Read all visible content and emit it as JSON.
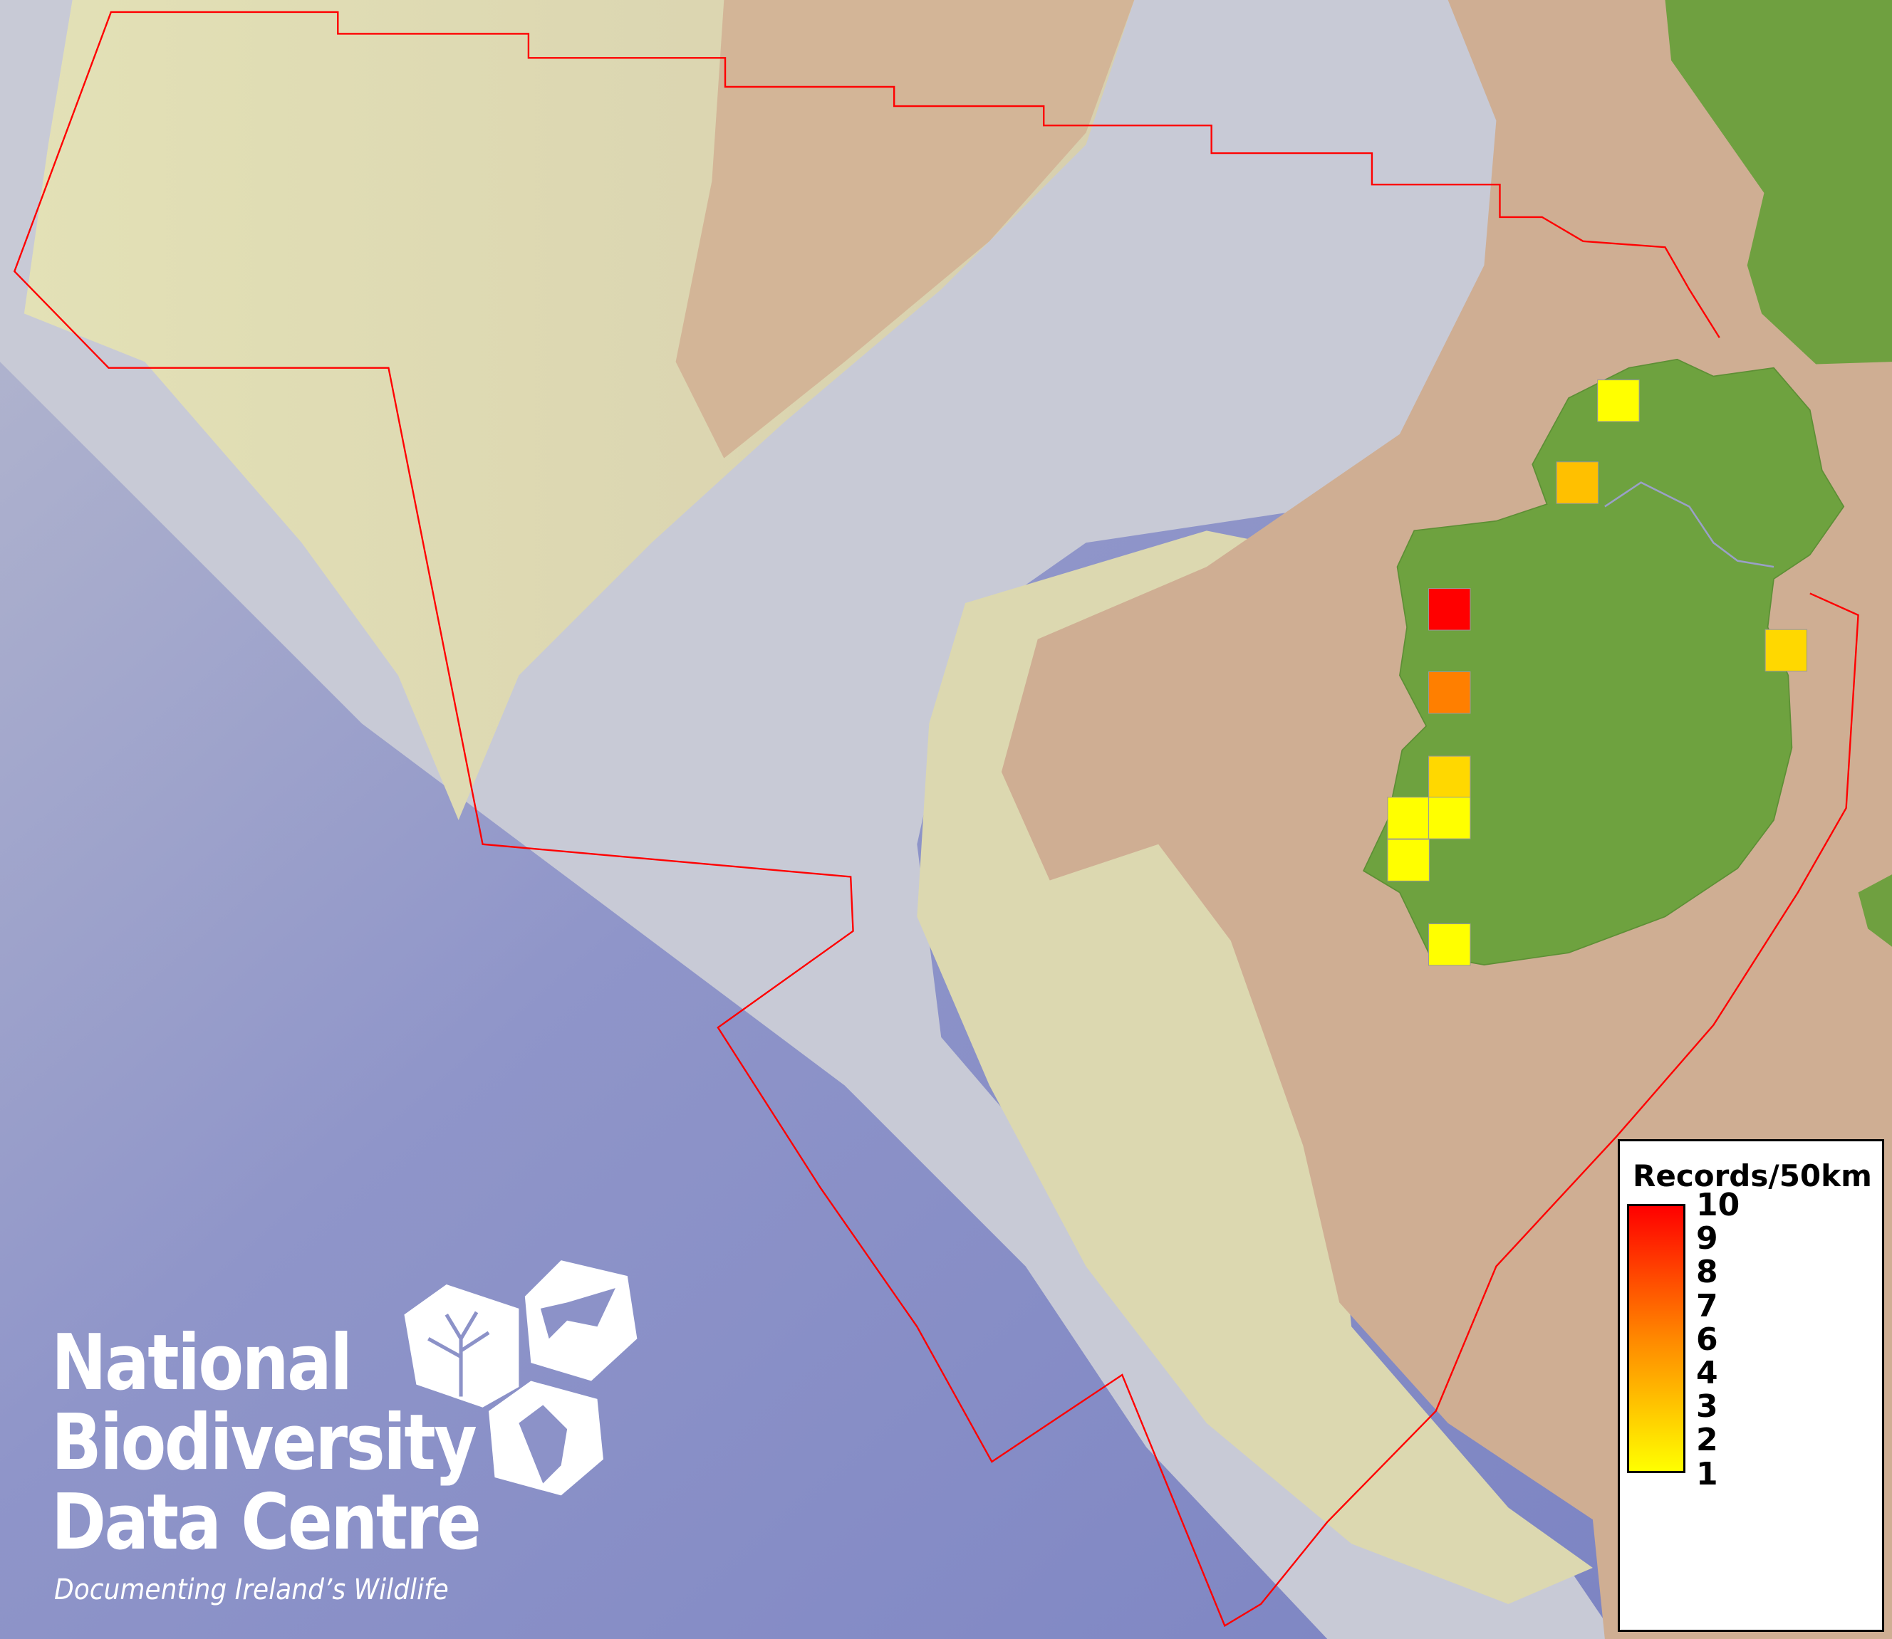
{
  "map": {
    "colors": {
      "deep_sea": "#7f86c4",
      "slope": "#c9cbd6",
      "shelf_yellow": "#dedbb0",
      "shelf_tan": "#cfaf93",
      "land": "#6fa040",
      "boundary": "#ff0000"
    },
    "records": [
      {
        "value": 1,
        "color": "#ffff00"
      },
      {
        "value": 3,
        "color": "#ffc000"
      },
      {
        "value": 10,
        "color": "#ff0000"
      },
      {
        "value": 6,
        "color": "#ff7f00"
      },
      {
        "value": 2,
        "color": "#ffd800"
      },
      {
        "value": 1,
        "color": "#ffff00"
      },
      {
        "value": 1,
        "color": "#ffff00"
      },
      {
        "value": 1,
        "color": "#ffff00"
      },
      {
        "value": 1,
        "color": "#ffff00"
      },
      {
        "value": 2,
        "color": "#ffd800"
      }
    ]
  },
  "legend": {
    "title": "Records/50km",
    "ticks": [
      "10",
      "9",
      "8",
      "7",
      "6",
      "4",
      "3",
      "2",
      "1"
    ],
    "gradient_top": "#ff0000",
    "gradient_mid": "#ff8800",
    "gradient_bottom": "#ffff00"
  },
  "logo": {
    "line1": "National",
    "line2": "Biodiversity",
    "line3": "Data Centre",
    "tagline": "Documenting Ireland’s Wildlife"
  }
}
